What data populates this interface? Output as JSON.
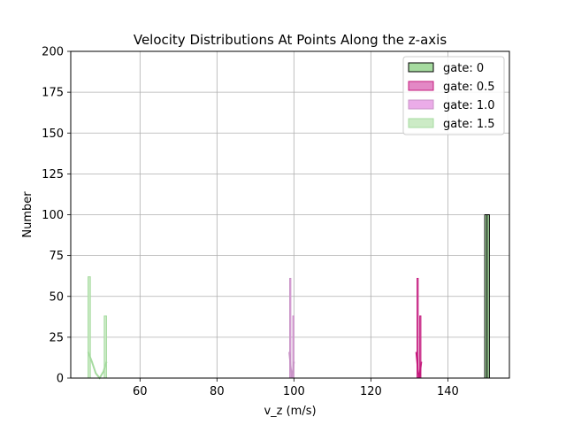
{
  "chart_data": {
    "type": "histogram",
    "title": "Velocity Distributions At Points Along the z-axis",
    "xlabel": "v_z (m/s)",
    "ylabel": "Number",
    "xlim": [
      42,
      156
    ],
    "ylim": [
      0,
      200
    ],
    "xticks": [
      60,
      80,
      100,
      120,
      140
    ],
    "yticks": [
      0,
      25,
      50,
      75,
      100,
      125,
      150,
      175,
      200
    ],
    "grid": true,
    "legend_position": "top-right",
    "series": [
      {
        "name": "gate: 0",
        "color": "#a6dba0",
        "edge": "#000000",
        "fill_alpha": 1.0,
        "bins": [
          {
            "x0": 149.6,
            "x1": 150.2,
            "count": 100
          },
          {
            "x0": 150.2,
            "x1": 150.8,
            "count": 100
          }
        ]
      },
      {
        "name": "gate: 0.5",
        "color": "#e07bbf",
        "edge": "#c51b7d",
        "fill_alpha": 0.9,
        "bins": [
          {
            "x0": 132.0,
            "x1": 132.3,
            "count": 61
          },
          {
            "x0": 132.7,
            "x1": 133.0,
            "count": 38
          }
        ],
        "kde": [
          [
            131.8,
            16
          ],
          [
            132.0,
            11
          ],
          [
            132.3,
            3
          ],
          [
            132.6,
            0
          ],
          [
            132.9,
            6
          ],
          [
            133.1,
            10
          ]
        ]
      },
      {
        "name": "gate: 1.0",
        "color": "#e9a3e6",
        "edge": "#c994c7",
        "fill_alpha": 0.9,
        "bins": [
          {
            "x0": 98.9,
            "x1": 99.2,
            "count": 61
          },
          {
            "x0": 99.7,
            "x1": 100.0,
            "count": 38
          }
        ],
        "kde": [
          [
            98.8,
            16
          ],
          [
            99.0,
            11
          ],
          [
            99.3,
            3
          ],
          [
            99.5,
            0
          ],
          [
            99.8,
            6
          ],
          [
            100.0,
            10
          ]
        ]
      },
      {
        "name": "gate: 1.5",
        "color": "#c7e9c0",
        "edge": "#a6dba0",
        "fill_alpha": 0.9,
        "bins": [
          {
            "x0": 46.5,
            "x1": 47.1,
            "count": 62
          },
          {
            "x0": 50.7,
            "x1": 51.3,
            "count": 38
          }
        ],
        "kde": [
          [
            46.5,
            16
          ],
          [
            47.5,
            10
          ],
          [
            48.5,
            3
          ],
          [
            49.5,
            0
          ],
          [
            50.5,
            4
          ],
          [
            51.3,
            10
          ]
        ]
      }
    ]
  }
}
